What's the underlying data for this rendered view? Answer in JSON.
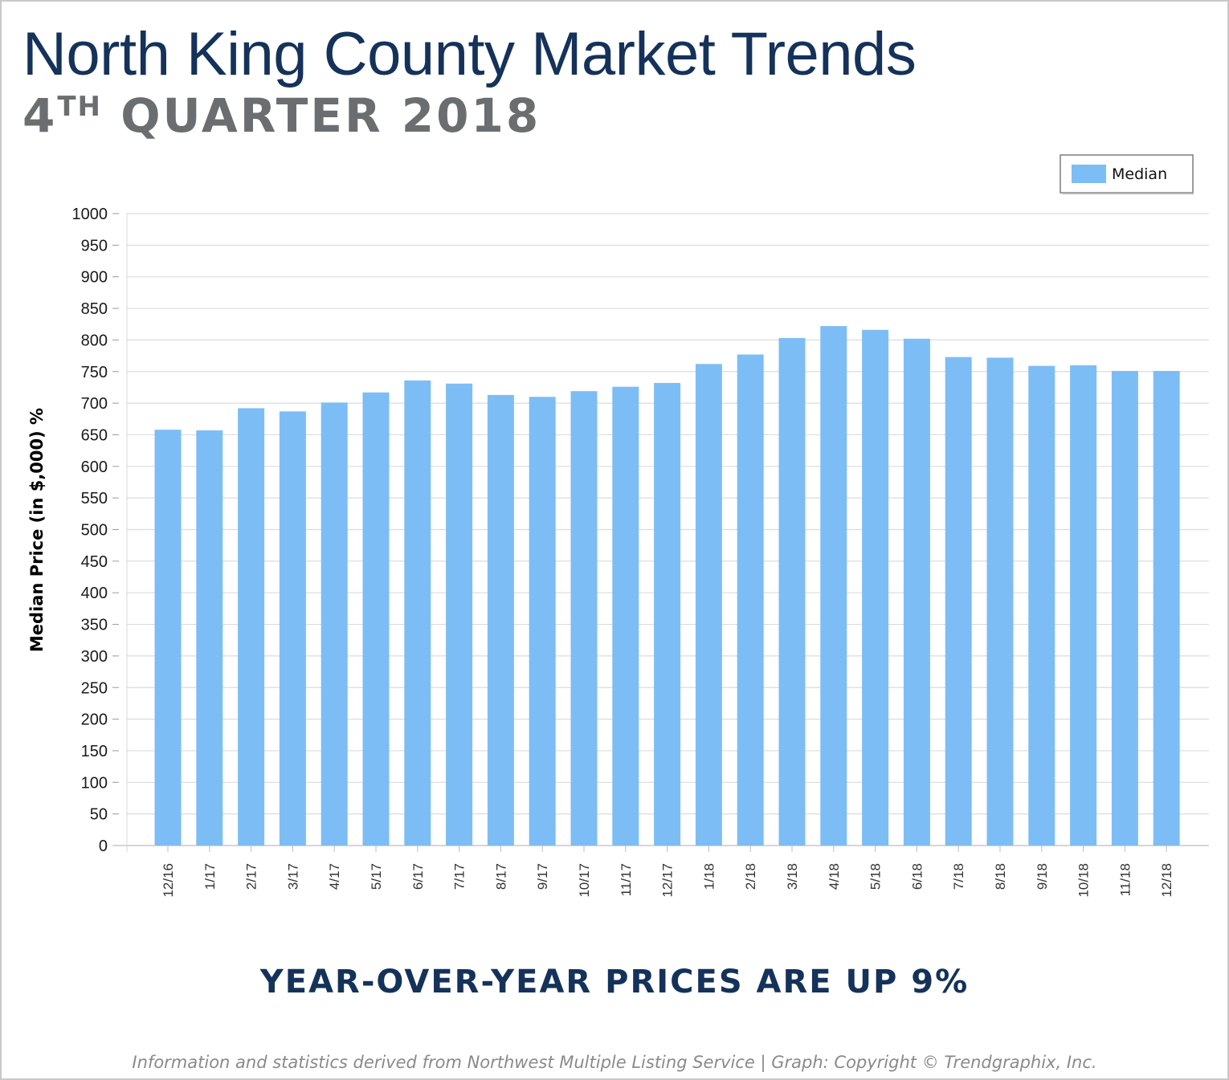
{
  "header": {
    "title": "North King County Market Trends",
    "subtitle_num": "4",
    "subtitle_sup": "TH",
    "subtitle_rest": " QUARTER 2018"
  },
  "chart_data": {
    "type": "bar",
    "categories": [
      "12/16",
      "1/17",
      "2/17",
      "3/17",
      "4/17",
      "5/17",
      "6/17",
      "7/17",
      "8/17",
      "9/17",
      "10/17",
      "11/17",
      "12/17",
      "1/18",
      "2/18",
      "3/18",
      "4/18",
      "5/18",
      "6/18",
      "7/18",
      "8/18",
      "9/18",
      "10/18",
      "11/18",
      "12/18"
    ],
    "series": [
      {
        "name": "Median",
        "values": [
          658,
          657,
          692,
          687,
          701,
          717,
          736,
          731,
          713,
          710,
          719,
          726,
          732,
          762,
          777,
          803,
          822,
          816,
          802,
          773,
          772,
          759,
          760,
          751,
          751
        ]
      }
    ],
    "ylabel": "Median Price (in $,000) %",
    "xlabel": "",
    "ylim": [
      0,
      1000
    ],
    "yticks": [
      0,
      50,
      100,
      150,
      200,
      250,
      300,
      350,
      400,
      450,
      500,
      550,
      600,
      650,
      700,
      750,
      800,
      850,
      900,
      950,
      1000
    ],
    "grid": true,
    "legend_position": "top-right",
    "bar_color": "#7dbdf5"
  },
  "headline": "YEAR-OVER-YEAR PRICES ARE UP 9%",
  "footer": "Information and statistics derived from Northwest Multiple Listing Service  |  Graph: Copyright © Trendgraphix, Inc."
}
